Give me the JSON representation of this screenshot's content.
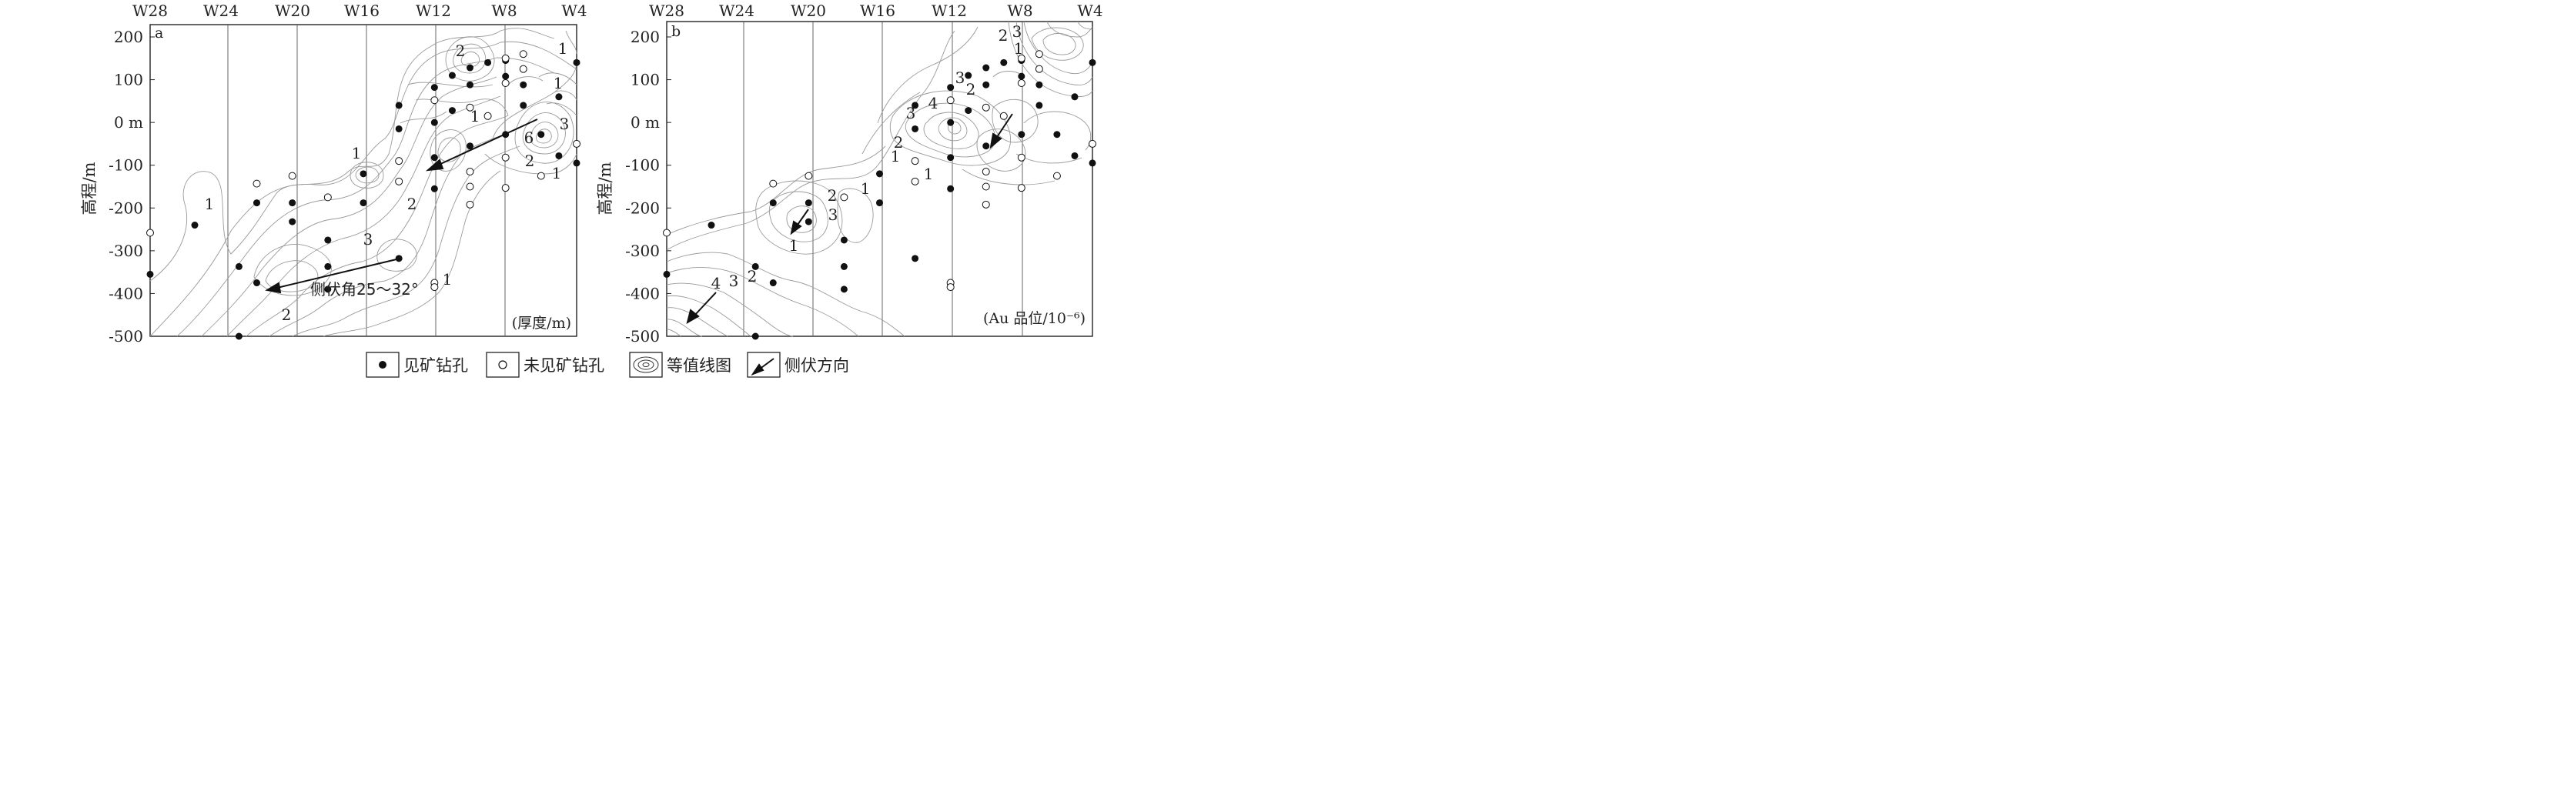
{
  "x_ticks": [
    "W28",
    "W24",
    "W20",
    "W16",
    "W12",
    "W8",
    "W4"
  ],
  "y_ticks": [
    "200",
    "100",
    "0 m",
    "-100",
    "-200",
    "-300",
    "-400",
    "-500"
  ],
  "y_label": "高程/m",
  "panels": [
    {
      "id": "a",
      "letter": "a",
      "unit_label": "(厚度/m)",
      "annotation": "侧伏角25～32°",
      "contour_labels": [
        "1",
        "2",
        "1",
        "1",
        "1",
        "3",
        "6",
        "2",
        "1",
        "1",
        "2",
        "3",
        "1",
        "2"
      ],
      "filled_holes": [
        {
          "x": "W28+",
          "y": -240
        },
        {
          "x": "W28",
          "y": -355
        },
        {
          "x": "W22",
          "y": -188
        },
        {
          "x": "W20",
          "y": -188
        },
        {
          "x": "W20",
          "y": -232
        },
        {
          "x": "W18",
          "y": -275
        },
        {
          "x": "W18",
          "y": -337
        },
        {
          "x": "W18",
          "y": -390
        },
        {
          "x": "W16",
          "y": -120
        },
        {
          "x": "W16",
          "y": -188
        },
        {
          "x": "W14",
          "y": -318
        },
        {
          "x": "W14",
          "y": 40
        },
        {
          "x": "W14",
          "y": -15
        },
        {
          "x": "W12",
          "y": 82
        },
        {
          "x": "W12",
          "y": 0
        },
        {
          "x": "W12",
          "y": -82
        },
        {
          "x": "W12",
          "y": -155
        },
        {
          "x": "W11",
          "y": 110
        },
        {
          "x": "W11",
          "y": 28
        },
        {
          "x": "W10",
          "y": 128
        },
        {
          "x": "W10",
          "y": 88
        },
        {
          "x": "W10",
          "y": -55
        },
        {
          "x": "W9",
          "y": 140
        },
        {
          "x": "W8",
          "y": 145
        },
        {
          "x": "W8",
          "y": 108
        },
        {
          "x": "W8",
          "y": -28
        },
        {
          "x": "W7",
          "y": 88
        },
        {
          "x": "W7",
          "y": 40
        },
        {
          "x": "W6",
          "y": -28
        },
        {
          "x": "W5",
          "y": 60
        },
        {
          "x": "W5",
          "y": -78
        },
        {
          "x": "W4",
          "y": 140
        },
        {
          "x": "W4",
          "y": -95
        },
        {
          "x": "W23",
          "y": -337
        },
        {
          "x": "W22",
          "y": -375
        },
        {
          "x": "W23",
          "y": -500
        }
      ],
      "open_holes": [
        {
          "x": "W28",
          "y": -258
        },
        {
          "x": "W22",
          "y": -143
        },
        {
          "x": "W20",
          "y": -125
        },
        {
          "x": "W18",
          "y": -175
        },
        {
          "x": "W14",
          "y": -90
        },
        {
          "x": "W14",
          "y": -138
        },
        {
          "x": "W12",
          "y": 52
        },
        {
          "x": "W12",
          "y": -375
        },
        {
          "x": "W12",
          "y": -385
        },
        {
          "x": "W10",
          "y": 35
        },
        {
          "x": "W10",
          "y": -115
        },
        {
          "x": "W10",
          "y": -150
        },
        {
          "x": "W10",
          "y": -192
        },
        {
          "x": "W9",
          "y": 15
        },
        {
          "x": "W8",
          "y": 150
        },
        {
          "x": "W8",
          "y": 92
        },
        {
          "x": "W8",
          "y": -82
        },
        {
          "x": "W8",
          "y": -153
        },
        {
          "x": "W7",
          "y": 160
        },
        {
          "x": "W7",
          "y": 125
        },
        {
          "x": "W6",
          "y": -125
        },
        {
          "x": "W4",
          "y": -50
        }
      ]
    },
    {
      "id": "b",
      "letter": "b",
      "unit_label": "(Au 品位/10⁻⁶)",
      "contour_labels": [
        "2",
        "3",
        "1",
        "3",
        "4",
        "3",
        "2",
        "2",
        "1",
        "1",
        "1",
        "2",
        "3",
        "1",
        "4",
        "3",
        "2"
      ]
    }
  ],
  "legend": {
    "filled_label": "见矿钻孔",
    "open_label": "未见矿钻孔",
    "contour_label": "等值线图",
    "arrow_label": "侧伏方向"
  }
}
